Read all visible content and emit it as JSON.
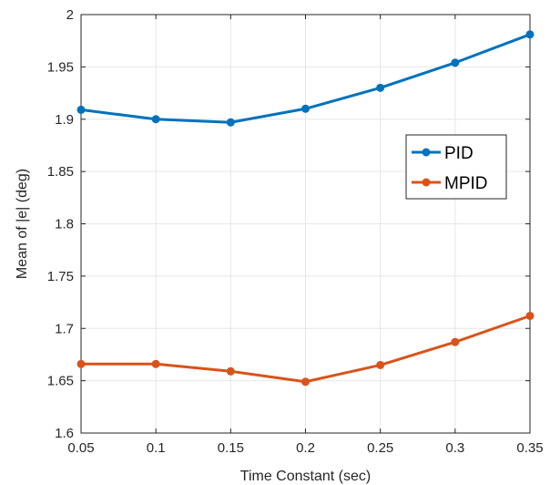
{
  "chart_data": {
    "type": "line",
    "title": "",
    "xlabel": "Time Constant (sec)",
    "ylabel": "Mean of |e| (deg)",
    "x": [
      0.05,
      0.1,
      0.15,
      0.2,
      0.25,
      0.3,
      0.35
    ],
    "xlim": [
      0.05,
      0.35
    ],
    "ylim": [
      1.6,
      2.0
    ],
    "xticks": [
      "0.05",
      "0.1",
      "0.15",
      "0.2",
      "0.25",
      "0.3",
      "0.35"
    ],
    "yticks": [
      "1.6",
      "1.65",
      "1.7",
      "1.75",
      "1.8",
      "1.85",
      "1.9",
      "1.95",
      "2"
    ],
    "grid": true,
    "legend_position": "right-middle",
    "series": [
      {
        "name": "PID",
        "color": "#0072BD",
        "values": [
          1.909,
          1.9,
          1.897,
          1.91,
          1.93,
          1.954,
          1.981
        ]
      },
      {
        "name": "MPID",
        "color": "#D95319",
        "values": [
          1.666,
          1.666,
          1.659,
          1.649,
          1.665,
          1.687,
          1.712
        ]
      }
    ]
  }
}
